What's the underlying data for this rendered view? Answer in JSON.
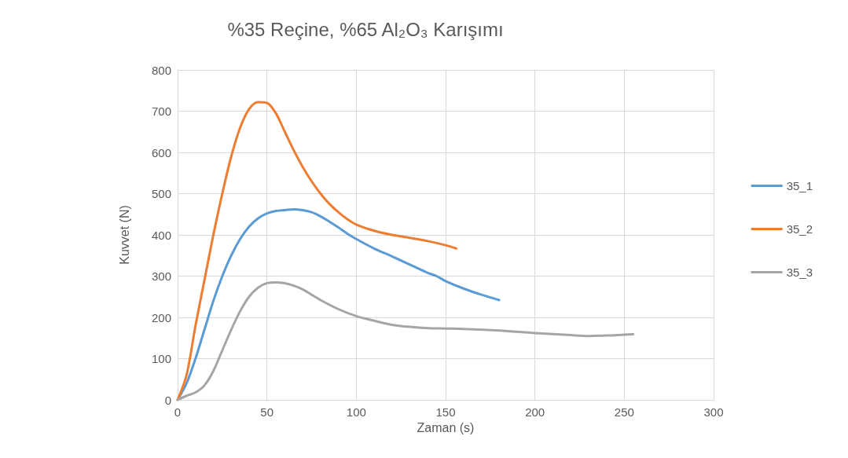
{
  "chart_data": {
    "type": "line",
    "title": "%35 Reçine, %65 Al₂O₃ Karışımı",
    "xlabel": "Zaman (s)",
    "ylabel": "Kuvvet (N)",
    "xlim": [
      0,
      300
    ],
    "xticks": [
      0,
      50,
      100,
      150,
      200,
      250,
      300
    ],
    "ylim": [
      0,
      800
    ],
    "yticks": [
      0,
      100,
      200,
      300,
      400,
      500,
      600,
      700,
      800
    ],
    "grid": true,
    "legend": "right",
    "marker": "none",
    "line_style": "solid",
    "series": [
      {
        "name": "35_1",
        "color": "#5b9bd5",
        "x": [
          0,
          5,
          10,
          15,
          20,
          25,
          30,
          35,
          40,
          45,
          50,
          55,
          60,
          65,
          70,
          75,
          80,
          85,
          90,
          95,
          100,
          110,
          120,
          130,
          140,
          145,
          150,
          160,
          170,
          180
        ],
        "values": [
          0,
          40,
          100,
          170,
          240,
          300,
          350,
          390,
          420,
          440,
          452,
          458,
          460,
          462,
          460,
          455,
          445,
          432,
          418,
          403,
          390,
          367,
          348,
          328,
          308,
          300,
          288,
          270,
          255,
          242
        ]
      },
      {
        "name": "35_2",
        "color": "#ed7d31",
        "x": [
          0,
          5,
          10,
          15,
          20,
          25,
          30,
          35,
          40,
          45,
          50,
          55,
          60,
          65,
          70,
          75,
          80,
          85,
          90,
          95,
          100,
          110,
          120,
          130,
          140,
          150,
          156
        ],
        "values": [
          0,
          60,
          180,
          290,
          400,
          500,
          590,
          660,
          705,
          722,
          720,
          695,
          650,
          605,
          565,
          530,
          500,
          475,
          455,
          438,
          425,
          410,
          400,
          393,
          385,
          375,
          367
        ]
      },
      {
        "name": "35_3",
        "color": "#a5a5a5",
        "x": [
          0,
          5,
          10,
          15,
          20,
          25,
          30,
          35,
          40,
          45,
          50,
          55,
          60,
          65,
          70,
          75,
          80,
          90,
          100,
          110,
          120,
          130,
          140,
          150,
          160,
          180,
          200,
          220,
          230,
          240,
          250,
          255
        ],
        "values": [
          0,
          10,
          18,
          35,
          70,
          120,
          170,
          215,
          250,
          272,
          283,
          285,
          283,
          277,
          268,
          255,
          242,
          220,
          203,
          192,
          182,
          177,
          174,
          173,
          172,
          168,
          162,
          157,
          155,
          156,
          158,
          159
        ]
      }
    ]
  }
}
